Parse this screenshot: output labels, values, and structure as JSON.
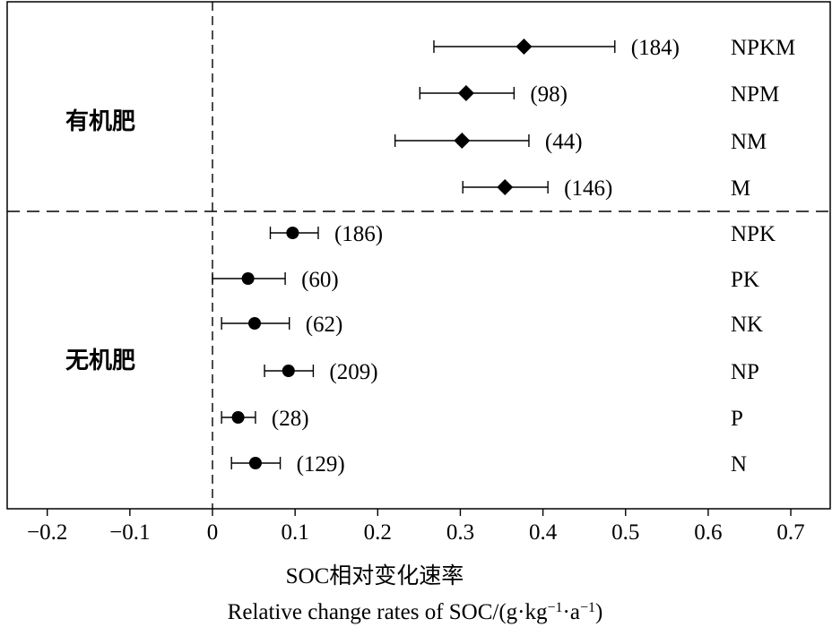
{
  "chart_data": {
    "type": "scatter",
    "subtype": "forest-plot-with-error-bars",
    "xlim": [
      -0.25,
      0.75
    ],
    "xticks": [
      -0.2,
      -0.1,
      0,
      0.1,
      0.2,
      0.3,
      0.4,
      0.5,
      0.6,
      0.7
    ],
    "xtick_labels": [
      "−0.2",
      "−0.1",
      "0",
      "0.1",
      "0.2",
      "0.3",
      "0.4",
      "0.5",
      "0.6",
      "0.7"
    ],
    "xlabel_line1": "SOC相对变化速率",
    "xlabel_line2_main": "Relative change rates of SOC/(g·kg",
    "xlabel_line2_sup1": "−1",
    "xlabel_line2_mid": "·a",
    "xlabel_line2_sup2": "−1",
    "xlabel_line2_end": ")",
    "reference_line_x": 0,
    "groups": [
      {
        "label": "有机肥",
        "marker": "diamond",
        "rows": [
          {
            "treatment": "NPKM",
            "value": 0.377,
            "ci_low": 0.268,
            "ci_high": 0.487,
            "n": 184,
            "n_label": "(184)"
          },
          {
            "treatment": "NPM",
            "value": 0.307,
            "ci_low": 0.251,
            "ci_high": 0.365,
            "n": 98,
            "n_label": "(98)"
          },
          {
            "treatment": "NM",
            "value": 0.302,
            "ci_low": 0.221,
            "ci_high": 0.383,
            "n": 44,
            "n_label": "(44)"
          },
          {
            "treatment": "M",
            "value": 0.354,
            "ci_low": 0.303,
            "ci_high": 0.406,
            "n": 146,
            "n_label": "(146)"
          }
        ]
      },
      {
        "label": "无机肥",
        "marker": "circle",
        "rows": [
          {
            "treatment": "NPK",
            "value": 0.097,
            "ci_low": 0.07,
            "ci_high": 0.128,
            "n": 186,
            "n_label": "(186)"
          },
          {
            "treatment": "PK",
            "value": 0.043,
            "ci_low": 0.0,
            "ci_high": 0.088,
            "n": 60,
            "n_label": "(60)"
          },
          {
            "treatment": "NK",
            "value": 0.051,
            "ci_low": 0.011,
            "ci_high": 0.093,
            "n": 62,
            "n_label": "(62)"
          },
          {
            "treatment": "NP",
            "value": 0.092,
            "ci_low": 0.063,
            "ci_high": 0.122,
            "n": 209,
            "n_label": "(209)"
          },
          {
            "treatment": "P",
            "value": 0.031,
            "ci_low": 0.011,
            "ci_high": 0.052,
            "n": 28,
            "n_label": "(28)"
          },
          {
            "treatment": "N",
            "value": 0.052,
            "ci_low": 0.023,
            "ci_high": 0.082,
            "n": 129,
            "n_label": "(129)"
          }
        ]
      }
    ],
    "legend": "none",
    "grid": false
  }
}
